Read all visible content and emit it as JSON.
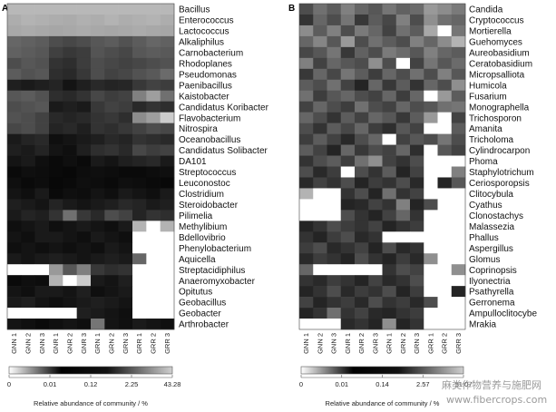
{
  "chart_data": [
    {
      "type": "heatmap",
      "panel": "A",
      "columns": [
        "GNN 1",
        "GNN 2",
        "GNN 3",
        "GNR 1",
        "GNR 2",
        "GNR 3",
        "GRN 1",
        "GRN 2",
        "GRN 3",
        "GRR 1",
        "GRR 2",
        "GRR 3"
      ],
      "rows": [
        "Bacillus",
        "Enterococcus",
        "Lactococcus",
        "Alkaliphilus",
        "Carnobacterium",
        "Rhodoplanes",
        "Pseudomonas",
        "Paenibacillus",
        "Kaistobacter",
        "Candidatus Koribacter",
        "Flavobacterium",
        "Nitrospira",
        "Oceanobacillus",
        "Candidatus Solibacter",
        "DA101",
        "Streptococcus",
        "Leuconostoc",
        "Clostridium",
        "Steroidobacter",
        "Pilimelia",
        "Methylibium",
        "Bdellovibrio",
        "Phenylobacterium",
        "Aquicella",
        "Streptacidiphilus",
        "Anaeromyxobacter",
        "Opitutus",
        "Geobacillus",
        "Geobacter",
        "Arthrobacter"
      ],
      "values": [
        [
          0.72,
          0.72,
          0.72,
          0.72,
          0.72,
          0.72,
          0.72,
          0.72,
          0.72,
          0.72,
          0.72,
          0.72
        ],
        [
          0.68,
          0.7,
          0.69,
          0.68,
          0.67,
          0.69,
          0.68,
          0.7,
          0.68,
          0.69,
          0.7,
          0.68
        ],
        [
          0.66,
          0.67,
          0.66,
          0.65,
          0.66,
          0.67,
          0.66,
          0.65,
          0.66,
          0.67,
          0.66,
          0.65
        ],
        [
          0.4,
          0.38,
          0.36,
          0.3,
          0.28,
          0.3,
          0.34,
          0.36,
          0.32,
          0.36,
          0.4,
          0.38
        ],
        [
          0.38,
          0.36,
          0.34,
          0.25,
          0.22,
          0.24,
          0.33,
          0.3,
          0.28,
          0.34,
          0.36,
          0.35
        ],
        [
          0.3,
          0.34,
          0.32,
          0.2,
          0.18,
          0.24,
          0.3,
          0.28,
          0.26,
          0.28,
          0.3,
          0.32
        ],
        [
          0.36,
          0.32,
          0.34,
          0.18,
          0.16,
          0.22,
          0.3,
          0.26,
          0.28,
          0.32,
          0.35,
          0.42
        ],
        [
          0.12,
          0.1,
          0.12,
          0.14,
          0.08,
          0.12,
          0.16,
          0.14,
          0.15,
          0.22,
          0.26,
          0.24
        ],
        [
          0.34,
          0.36,
          0.32,
          0.18,
          0.16,
          0.2,
          0.28,
          0.24,
          0.26,
          0.5,
          0.62,
          0.44
        ],
        [
          0.3,
          0.32,
          0.34,
          0.1,
          0.12,
          0.1,
          0.22,
          0.26,
          0.24,
          0.16,
          0.2,
          0.18
        ],
        [
          0.32,
          0.3,
          0.26,
          0.16,
          0.14,
          0.16,
          0.2,
          0.22,
          0.18,
          0.55,
          0.62,
          0.8
        ],
        [
          0.28,
          0.3,
          0.26,
          0.14,
          0.16,
          0.12,
          0.2,
          0.18,
          0.22,
          0.26,
          0.3,
          0.28
        ],
        [
          0.1,
          0.14,
          0.16,
          0.06,
          0.08,
          0.1,
          0.12,
          0.16,
          0.14,
          0.2,
          0.18,
          0.16
        ],
        [
          0.12,
          0.1,
          0.14,
          0.08,
          0.06,
          0.12,
          0.18,
          0.2,
          0.16,
          0.28,
          0.24,
          0.26
        ],
        [
          0.08,
          0.1,
          0.06,
          0.04,
          0.06,
          0.04,
          0.1,
          0.08,
          0.12,
          0.14,
          0.16,
          0.1
        ],
        [
          0.04,
          0.06,
          0.05,
          0.04,
          0.03,
          0.05,
          0.06,
          0.05,
          0.04,
          0.04,
          0.05,
          0.06
        ],
        [
          0.06,
          0.04,
          0.05,
          0.03,
          0.04,
          0.06,
          0.05,
          0.04,
          0.06,
          0.05,
          0.04,
          0.03
        ],
        [
          0.08,
          0.06,
          0.1,
          0.04,
          0.06,
          0.05,
          0.08,
          0.06,
          0.1,
          0.08,
          0.06,
          0.1
        ],
        [
          0.12,
          0.1,
          0.08,
          0.14,
          0.1,
          0.08,
          0.1,
          0.12,
          0.16,
          0.14,
          0.1,
          0.12
        ],
        [
          0.1,
          0.14,
          0.12,
          0.2,
          0.44,
          0.22,
          0.16,
          0.3,
          0.26,
          0.14,
          0.2,
          0.18
        ],
        [
          0.06,
          0.08,
          0.1,
          0.06,
          0.08,
          0.1,
          0.08,
          0.06,
          0.1,
          0.7,
          1.0,
          0.7
        ],
        [
          0.08,
          0.06,
          0.1,
          0.1,
          0.08,
          0.06,
          0.1,
          0.08,
          0.06,
          1.0,
          1.0,
          1.0
        ],
        [
          0.06,
          0.08,
          0.06,
          0.08,
          0.06,
          0.08,
          0.06,
          0.1,
          0.08,
          1.0,
          1.0,
          1.0
        ],
        [
          0.1,
          0.08,
          0.1,
          0.12,
          0.1,
          0.08,
          0.1,
          0.12,
          0.1,
          0.4,
          1.0,
          1.0
        ],
        [
          1.0,
          1.0,
          1.0,
          0.6,
          0.34,
          0.5,
          0.22,
          0.18,
          0.2,
          1.0,
          1.0,
          1.0
        ],
        [
          0.04,
          0.06,
          0.05,
          0.7,
          1.0,
          0.8,
          0.1,
          0.08,
          0.12,
          1.0,
          1.0,
          1.0
        ],
        [
          0.08,
          0.06,
          0.1,
          0.1,
          0.08,
          0.12,
          0.06,
          0.08,
          0.1,
          1.0,
          1.0,
          1.0
        ],
        [
          0.1,
          0.12,
          0.08,
          0.06,
          0.08,
          0.1,
          0.12,
          0.1,
          0.08,
          1.0,
          1.0,
          1.0
        ],
        [
          1.0,
          1.0,
          1.0,
          1.0,
          1.0,
          0.12,
          0.1,
          0.08,
          0.06,
          1.0,
          1.0,
          1.0
        ],
        [
          0.08,
          0.06,
          0.04,
          0.06,
          0.08,
          0.06,
          0.46,
          0.08,
          0.06,
          0.1,
          0.08,
          0.06
        ]
      ],
      "colorbar": {
        "ticks": [
          "0",
          "0.01",
          "0.12",
          "2.25",
          "43.28"
        ],
        "label": "Relative abundance of community / %"
      }
    },
    {
      "type": "heatmap",
      "panel": "B",
      "columns": [
        "GNN 1",
        "GNN 2",
        "GNN 3",
        "GNR 1",
        "GNR 2",
        "GNR 3",
        "GRN 1",
        "GRN 2",
        "GRN 3",
        "GRR 1",
        "GRR 2",
        "GRR 3"
      ],
      "rows": [
        "Candida",
        "Cryptococcus",
        "Mortierella",
        "Guehomyces",
        "Aureobasidium",
        "Ceratobasidium",
        "Micropsalliota",
        "Humicola",
        "Fusarium",
        "Monographella",
        "Trichosporon",
        "Amanita",
        "Tricholoma",
        "Cylindrocarpon",
        "Phoma",
        "Staphylotrichum",
        "Ceriosporopsis",
        "Clitocybula",
        "Cyathus",
        "Clonostachys",
        "Malassezia",
        "Phallus",
        "Aspergillus",
        "Glomus",
        "Coprinopsis",
        "Ilyonectria",
        "Psathyrella",
        "Gerronema",
        "Ampulloclitocybe",
        "Mrakia"
      ],
      "values": [
        [
          0.3,
          0.44,
          0.36,
          0.5,
          0.4,
          0.34,
          0.46,
          0.38,
          0.42,
          0.6,
          0.55,
          0.48
        ],
        [
          0.2,
          0.4,
          0.3,
          0.46,
          0.22,
          0.36,
          0.28,
          0.5,
          0.3,
          0.56,
          0.44,
          0.4
        ],
        [
          0.55,
          0.36,
          0.5,
          0.3,
          0.48,
          0.4,
          0.26,
          0.44,
          0.36,
          0.66,
          1.0,
          0.46
        ],
        [
          0.4,
          0.52,
          0.34,
          0.6,
          0.3,
          0.44,
          0.36,
          0.3,
          0.5,
          0.4,
          0.55,
          0.7
        ],
        [
          0.28,
          0.34,
          0.46,
          0.22,
          0.38,
          0.3,
          0.48,
          0.42,
          0.34,
          0.5,
          0.4,
          0.36
        ],
        [
          0.5,
          0.26,
          0.4,
          0.34,
          0.3,
          0.56,
          0.3,
          1.0,
          0.26,
          0.46,
          0.34,
          0.42
        ],
        [
          0.22,
          0.4,
          0.28,
          0.46,
          0.36,
          0.24,
          0.4,
          0.3,
          0.44,
          0.3,
          0.5,
          0.34
        ],
        [
          0.36,
          0.3,
          0.44,
          0.26,
          0.14,
          0.4,
          0.22,
          0.36,
          0.2,
          0.4,
          0.3,
          0.56
        ],
        [
          0.44,
          0.24,
          0.34,
          0.4,
          0.3,
          0.26,
          0.4,
          0.24,
          0.4,
          1.0,
          0.6,
          0.36
        ],
        [
          0.26,
          0.4,
          0.3,
          0.24,
          0.44,
          0.3,
          0.26,
          0.4,
          0.3,
          0.34,
          0.44,
          0.46
        ],
        [
          0.4,
          0.3,
          0.2,
          0.36,
          0.26,
          0.4,
          0.34,
          0.22,
          0.36,
          0.6,
          1.0,
          0.26
        ],
        [
          0.3,
          0.2,
          0.36,
          0.28,
          0.4,
          0.24,
          0.18,
          0.34,
          0.26,
          1.0,
          1.0,
          0.36
        ],
        [
          0.24,
          0.36,
          0.26,
          0.16,
          0.3,
          0.4,
          1.0,
          0.26,
          0.34,
          0.3,
          0.46,
          0.3
        ],
        [
          0.36,
          0.26,
          0.14,
          0.4,
          0.22,
          0.3,
          0.26,
          0.4,
          0.18,
          1.0,
          0.34,
          0.26
        ],
        [
          0.2,
          0.3,
          0.36,
          0.24,
          0.44,
          0.56,
          0.26,
          0.2,
          0.3,
          1.0,
          1.0,
          1.0
        ],
        [
          0.3,
          0.16,
          0.24,
          1.0,
          0.3,
          0.2,
          0.36,
          0.14,
          0.26,
          1.0,
          1.0,
          0.5
        ],
        [
          0.16,
          0.26,
          0.2,
          0.3,
          0.14,
          0.24,
          0.2,
          0.3,
          0.16,
          1.0,
          0.14,
          0.34
        ],
        [
          0.7,
          1.0,
          1.0,
          0.2,
          0.3,
          0.14,
          0.44,
          0.2,
          0.26,
          1.0,
          1.0,
          1.0
        ],
        [
          1.0,
          1.0,
          1.0,
          0.14,
          0.16,
          0.26,
          0.2,
          0.5,
          0.14,
          0.3,
          1.0,
          1.0
        ],
        [
          1.0,
          1.0,
          1.0,
          0.3,
          0.2,
          0.14,
          0.26,
          0.4,
          0.2,
          1.0,
          1.0,
          1.0
        ],
        [
          0.14,
          0.2,
          0.3,
          0.24,
          0.2,
          0.26,
          0.14,
          0.2,
          0.24,
          1.0,
          1.0,
          1.0
        ],
        [
          0.2,
          0.14,
          0.24,
          0.3,
          0.16,
          0.2,
          1.0,
          1.0,
          1.0,
          1.0,
          1.0,
          1.0
        ],
        [
          0.24,
          0.3,
          0.16,
          0.2,
          0.26,
          0.14,
          0.3,
          0.16,
          0.2,
          1.0,
          1.0,
          1.0
        ],
        [
          0.16,
          0.24,
          0.2,
          0.14,
          0.3,
          0.2,
          0.14,
          0.24,
          0.16,
          0.56,
          1.0,
          1.0
        ],
        [
          0.4,
          1.0,
          1.0,
          1.0,
          1.0,
          1.0,
          0.2,
          0.3,
          0.26,
          1.0,
          1.0,
          0.56
        ],
        [
          0.2,
          0.16,
          0.24,
          0.2,
          0.14,
          0.26,
          0.16,
          0.2,
          0.3,
          1.0,
          1.0,
          1.0
        ],
        [
          0.14,
          0.2,
          0.3,
          0.16,
          0.24,
          0.2,
          0.3,
          0.14,
          0.24,
          1.0,
          1.0,
          0.14
        ],
        [
          0.26,
          0.14,
          0.2,
          0.24,
          0.16,
          0.3,
          0.2,
          0.24,
          0.16,
          0.3,
          1.0,
          1.0
        ],
        [
          0.14,
          0.2,
          0.44,
          0.2,
          0.26,
          0.16,
          0.14,
          0.2,
          0.24,
          1.0,
          1.0,
          1.0
        ],
        [
          1.0,
          1.0,
          1.0,
          0.16,
          0.2,
          0.14,
          0.56,
          0.14,
          0.2,
          1.0,
          1.0,
          1.0
        ]
      ],
      "colorbar": {
        "ticks": [
          "0",
          "0.01",
          "0.14",
          "2.57",
          "51.07"
        ],
        "label": "Relative abundance of community / %"
      }
    }
  ],
  "watermark": {
    "line1": "麻类作物营养与施肥网",
    "line2": "www.fibercrops.com"
  }
}
